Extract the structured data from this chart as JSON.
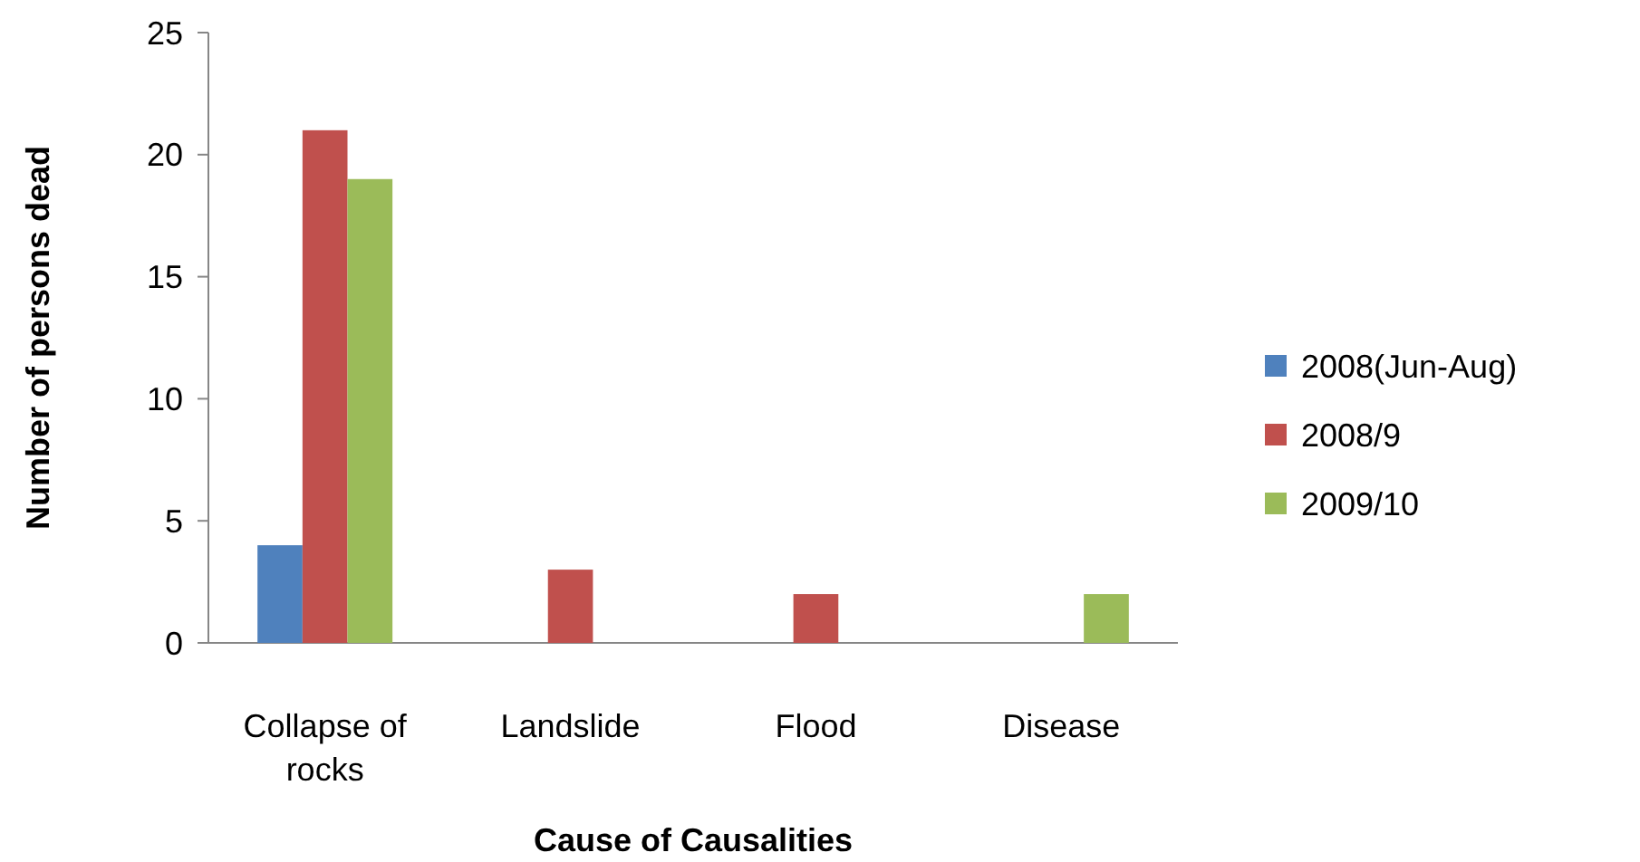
{
  "chart_data": {
    "type": "bar",
    "xlabel": "Cause  of  Causalities",
    "ylabel": "Number of persons dead",
    "categories": [
      "Collapse of rocks",
      "Landslide",
      "Flood",
      "Disease"
    ],
    "series": [
      {
        "name": "2008(Jun-Aug)",
        "color": "#4f81bd",
        "values": [
          4,
          0,
          0,
          0
        ]
      },
      {
        "name": "2008/9",
        "color": "#c0504d",
        "values": [
          21,
          3,
          2,
          0
        ]
      },
      {
        "name": "2009/10",
        "color": "#9bbb59",
        "values": [
          19,
          0,
          0,
          2
        ]
      }
    ],
    "ylim": [
      0,
      25
    ],
    "yticks": [
      0,
      5,
      10,
      15,
      20,
      25
    ],
    "grid": false,
    "legend": "right"
  }
}
